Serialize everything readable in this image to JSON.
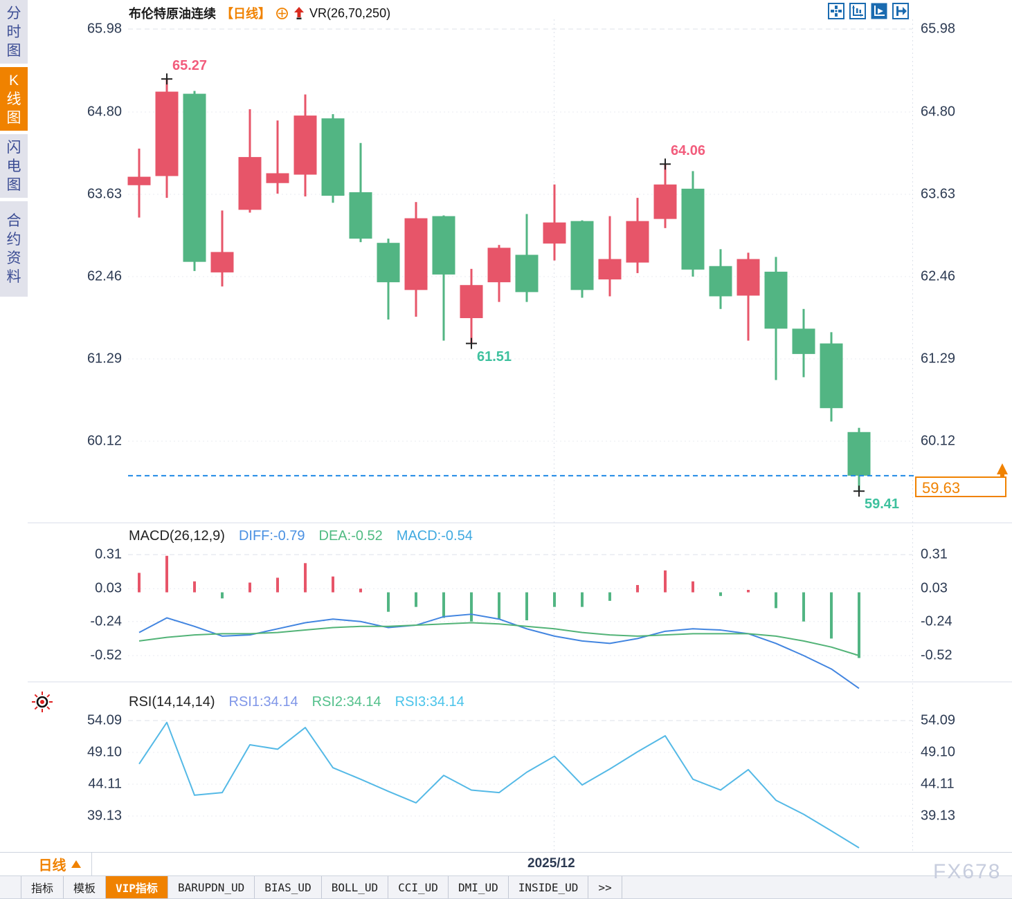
{
  "colors": {
    "up": "#e75569",
    "down": "#52b583",
    "orange": "#f08200",
    "icon_blue": "#1a6bb0",
    "diff_line": "#4285e0",
    "dea_line": "#52b377",
    "rsi_line": "#54b9e6",
    "dash_price": "#1e88e5",
    "grid": "#e8ebf2",
    "grid_dash": "#dce1ea",
    "axis_text": "#2c3a52",
    "ann_red": "#f25c7c",
    "ann_green": "#3ec19e",
    "legend_diff": "#4a90e2",
    "legend_dea": "#4fbb82",
    "legend_macd": "#3fa9e0",
    "legend_rsi1": "#7f96e8",
    "legend_rsi2": "#53c08b",
    "legend_rsi3": "#49c3ea"
  },
  "sidebar": {
    "tabs": [
      {
        "label": "分时图",
        "active": false
      },
      {
        "label": "K线图",
        "active": true
      },
      {
        "label": "闪电图",
        "active": false
      },
      {
        "label": "合约资料",
        "active": false
      }
    ]
  },
  "header": {
    "symbol": "布伦特原油连续",
    "period_tag": "【日线】",
    "vr_label": "VR(26,70,250)"
  },
  "toolbar": {
    "icons": [
      "crosshair-icon",
      "axis-fit-icon",
      "axis-auto-icon",
      "jump-latest-icon"
    ]
  },
  "panels": {
    "macd": {
      "title": "MACD(26,12,9)",
      "diff": "DIFF:-0.79",
      "dea": "DEA:-0.52",
      "macd": "MACD:-0.54"
    },
    "rsi": {
      "title": "RSI(14,14,14)",
      "r1": "RSI1:34.14",
      "r2": "RSI2:34.14",
      "r3": "RSI3:34.14"
    }
  },
  "price_badge": {
    "value": "59.63"
  },
  "bottom": {
    "period_selector": "日线",
    "date_label": "2025/12",
    "watermark": "FX678",
    "tabs": [
      {
        "label": "指标",
        "active": false
      },
      {
        "label": "模板",
        "active": false
      },
      {
        "label": "VIP指标",
        "active": true
      },
      {
        "label": "BARUPDN_UD",
        "active": false
      },
      {
        "label": "BIAS_UD",
        "active": false
      },
      {
        "label": "BOLL_UD",
        "active": false
      },
      {
        "label": "CCI_UD",
        "active": false
      },
      {
        "label": "DMI_UD",
        "active": false
      },
      {
        "label": "INSIDE_UD",
        "active": false
      },
      {
        "label": ">>",
        "active": false
      }
    ]
  },
  "chart_data": [
    {
      "type": "candlestick",
      "title": "布伦特原油连续 日线",
      "y_ticks": [
        65.98,
        64.8,
        63.63,
        62.46,
        61.29,
        60.12
      ],
      "ylim": [
        59.2,
        66.4
      ],
      "current_price": 59.63,
      "candles": [
        {
          "o": 63.76,
          "h": 64.28,
          "l": 63.3,
          "c": 63.88
        },
        {
          "o": 63.89,
          "h": 65.27,
          "l": 63.58,
          "c": 65.09
        },
        {
          "o": 65.06,
          "h": 65.1,
          "l": 62.54,
          "c": 62.67
        },
        {
          "o": 62.52,
          "h": 63.4,
          "l": 62.32,
          "c": 62.81
        },
        {
          "o": 63.41,
          "h": 64.84,
          "l": 63.37,
          "c": 64.16
        },
        {
          "o": 63.79,
          "h": 64.68,
          "l": 63.64,
          "c": 63.93
        },
        {
          "o": 63.91,
          "h": 65.05,
          "l": 63.6,
          "c": 64.75
        },
        {
          "o": 64.71,
          "h": 64.77,
          "l": 63.51,
          "c": 63.61
        },
        {
          "o": 63.66,
          "h": 64.36,
          "l": 62.95,
          "c": 63.0
        },
        {
          "o": 62.94,
          "h": 63.0,
          "l": 61.85,
          "c": 62.38
        },
        {
          "o": 62.27,
          "h": 63.52,
          "l": 61.89,
          "c": 63.29
        },
        {
          "o": 63.32,
          "h": 63.33,
          "l": 61.55,
          "c": 62.49
        },
        {
          "o": 61.87,
          "h": 62.57,
          "l": 61.51,
          "c": 62.34
        },
        {
          "o": 62.38,
          "h": 62.91,
          "l": 62.1,
          "c": 62.87
        },
        {
          "o": 62.77,
          "h": 63.35,
          "l": 62.1,
          "c": 62.24
        },
        {
          "o": 62.93,
          "h": 63.77,
          "l": 62.69,
          "c": 63.23
        },
        {
          "o": 63.25,
          "h": 63.26,
          "l": 62.16,
          "c": 62.27
        },
        {
          "o": 62.42,
          "h": 63.32,
          "l": 62.18,
          "c": 62.71
        },
        {
          "o": 62.66,
          "h": 63.58,
          "l": 62.51,
          "c": 63.25
        },
        {
          "o": 63.28,
          "h": 64.06,
          "l": 63.15,
          "c": 63.77
        },
        {
          "o": 63.71,
          "h": 63.96,
          "l": 62.46,
          "c": 62.56
        },
        {
          "o": 62.61,
          "h": 62.85,
          "l": 62.0,
          "c": 62.18
        },
        {
          "o": 62.19,
          "h": 62.8,
          "l": 61.55,
          "c": 62.71
        },
        {
          "o": 62.53,
          "h": 62.74,
          "l": 60.99,
          "c": 61.72
        },
        {
          "o": 61.72,
          "h": 62.0,
          "l": 61.03,
          "c": 61.36
        },
        {
          "o": 61.51,
          "h": 61.67,
          "l": 60.4,
          "c": 60.59
        },
        {
          "o": 60.25,
          "h": 60.31,
          "l": 59.41,
          "c": 59.63
        }
      ],
      "annotations": [
        {
          "text": "65.27",
          "index": 1,
          "pos": "high",
          "color": "ann_red"
        },
        {
          "text": "64.06",
          "index": 19,
          "pos": "high",
          "color": "ann_red"
        },
        {
          "text": "61.51",
          "index": 12,
          "pos": "low",
          "color": "ann_green"
        },
        {
          "text": "59.41",
          "index": 26,
          "pos": "low",
          "color": "ann_green"
        }
      ],
      "x_gridline_label": "2025/12",
      "x_gridline_index": 15
    },
    {
      "type": "bar",
      "title": "MACD(26,12,9)",
      "y_ticks": [
        0.31,
        0.03,
        -0.24,
        -0.52
      ],
      "values": [
        0.16,
        0.3,
        0.09,
        -0.05,
        0.08,
        0.12,
        0.24,
        0.13,
        0.03,
        -0.16,
        -0.12,
        -0.21,
        -0.24,
        -0.22,
        -0.23,
        -0.12,
        -0.12,
        -0.07,
        0.06,
        0.18,
        0.09,
        -0.03,
        0.02,
        -0.13,
        -0.24,
        -0.38,
        -0.54
      ],
      "series": [
        {
          "name": "DIFF",
          "values": [
            -0.33,
            -0.21,
            -0.28,
            -0.36,
            -0.35,
            -0.3,
            -0.25,
            -0.22,
            -0.24,
            -0.29,
            -0.27,
            -0.2,
            -0.18,
            -0.22,
            -0.3,
            -0.36,
            -0.4,
            -0.42,
            -0.38,
            -0.32,
            -0.3,
            -0.31,
            -0.34,
            -0.42,
            -0.52,
            -0.63,
            -0.79
          ]
        },
        {
          "name": "DEA",
          "values": [
            -0.4,
            -0.37,
            -0.35,
            -0.34,
            -0.34,
            -0.33,
            -0.31,
            -0.29,
            -0.28,
            -0.28,
            -0.27,
            -0.26,
            -0.25,
            -0.26,
            -0.28,
            -0.3,
            -0.33,
            -0.35,
            -0.36,
            -0.35,
            -0.34,
            -0.34,
            -0.34,
            -0.36,
            -0.4,
            -0.45,
            -0.52
          ]
        }
      ]
    },
    {
      "type": "line",
      "title": "RSI(14,14,14)",
      "y_ticks": [
        54.09,
        49.1,
        44.11,
        39.13
      ],
      "values": [
        47.3,
        53.8,
        42.4,
        42.8,
        50.3,
        49.6,
        53.0,
        46.7,
        44.9,
        43.0,
        41.2,
        45.5,
        43.2,
        42.8,
        46.0,
        48.5,
        44.0,
        46.5,
        49.2,
        51.7,
        44.9,
        43.2,
        46.4,
        41.6,
        39.4,
        36.8,
        34.14
      ]
    }
  ]
}
